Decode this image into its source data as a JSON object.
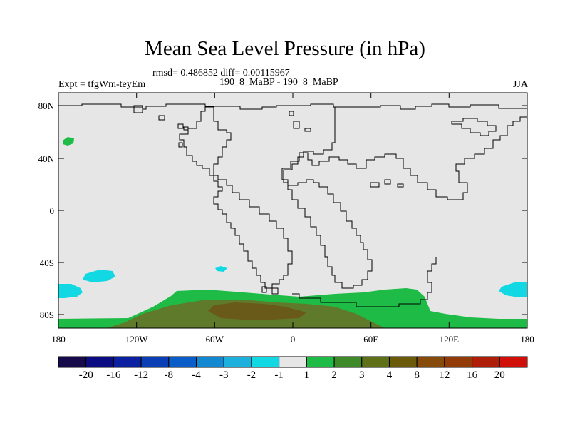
{
  "title": "Mean Sea Level Pressure (in hPa)",
  "stats_line": "rmsd= 0.486852 diff= 0.00115967",
  "experiment": "Expt = tfgWm-teyEm",
  "comparison": "190_8_MaBP - 190_8_MaBP",
  "season": "JJA",
  "y_axis": {
    "ticks": [
      "80N",
      "40N",
      "0",
      "40S",
      "80S"
    ]
  },
  "x_axis": {
    "ticks": [
      "180",
      "120W",
      "60W",
      "0",
      "60E",
      "120E",
      "180"
    ]
  },
  "colorbar": {
    "labels": [
      "-20",
      "-16",
      "-12",
      "-8",
      "-4",
      "-3",
      "-2",
      "-1",
      "1",
      "2",
      "3",
      "4",
      "8",
      "12",
      "16",
      "20"
    ],
    "colors": [
      "#170a4a",
      "#0c0c82",
      "#0a20a0",
      "#0a3eb4",
      "#0a5cc8",
      "#1288d0",
      "#1eb0dc",
      "#12d8e4",
      "#e6e6e6",
      "#1ebc46",
      "#3e8a28",
      "#5e7018",
      "#6a5a0a",
      "#864a0a",
      "#923a08",
      "#ae1e08",
      "#d01008"
    ]
  },
  "map_colors": {
    "background": "#e6e6e6",
    "cyan": "#12d8e4",
    "green": "#1ebc46",
    "olive": "#5e7a2a",
    "brown": "#6a5a1a"
  }
}
